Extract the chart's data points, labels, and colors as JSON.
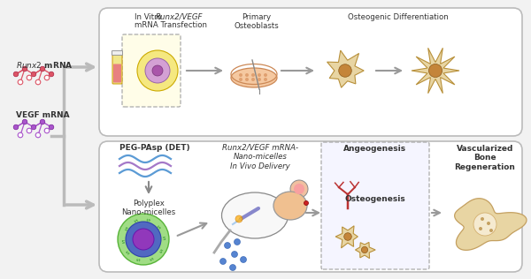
{
  "bg_color": "#f2f2f2",
  "panel_bg": "#ffffff",
  "panel_border": "#cccccc",
  "arrow_color": "#aaaaaa",
  "top_labels": {
    "l1a": "In Vitro ",
    "l1b": "Runx2/VEGF",
    "l1c": "mRNA Transfection",
    "l2": "Primary\nOsteoblasts",
    "l3": "Osteogenic Differentiation"
  },
  "bottom_labels": {
    "l1": "PEG-PAsp (DET)",
    "l2a": "Runx2",
    "l2b": "/VEGF mRNA-",
    "l2c": "Nano-micelles",
    "l2d": "In Vivo Delivery",
    "l3": "Polyplex\nNano-micelles",
    "l4a": "Angeogenesis",
    "l4b": "Osteogenesis",
    "l5": "Vascularized\nBone\nRegeneration"
  },
  "left_labels": {
    "l1a": "Runx2",
    "l1b": " mRNA",
    "l2": "VEGF mRNA"
  },
  "cell_color": "#e8d5a3",
  "cell_nucleus": "#c4853a",
  "wave_color1": "#5b9bd5",
  "wave_color2": "#a478c8",
  "micelle_outer": "#7ec87e",
  "micelle_inner_blue": "#5b6ec4",
  "micelle_inner_purple": "#9b59b6",
  "vessel_color": "#c0392b",
  "bone_color": "#e8d5a3"
}
